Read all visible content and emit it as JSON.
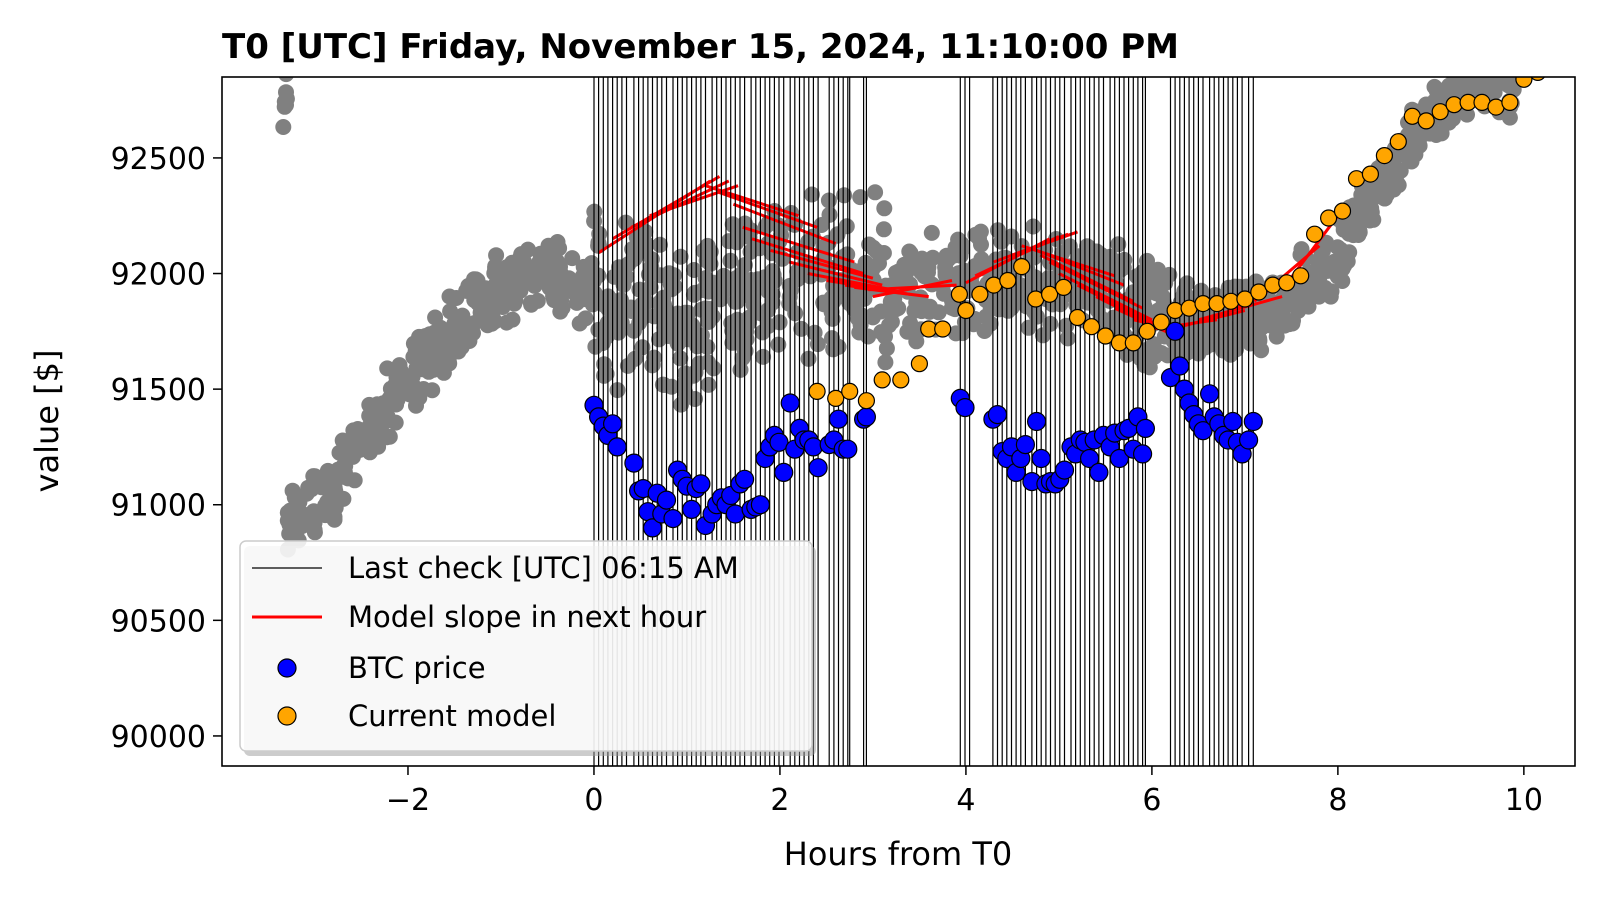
{
  "chart_data": {
    "type": "scatter",
    "title": "T0 [UTC] Friday, November 15, 2024, 11:10:00 PM",
    "xlabel": "Hours from T0",
    "ylabel": "value [$]",
    "xlim": [
      -4,
      10.55
    ],
    "ylim": [
      89870,
      92850
    ],
    "xticks": [
      -2,
      0,
      2,
      4,
      6,
      8,
      10
    ],
    "xtick_labels": [
      "−2",
      "0",
      "2",
      "4",
      "6",
      "8",
      "10"
    ],
    "yticks": [
      90000,
      90500,
      91000,
      91500,
      92000,
      92500
    ],
    "ytick_labels": [
      "90000",
      "90500",
      "91000",
      "91500",
      "92000",
      "92500"
    ],
    "grid": false,
    "legend_position": "lower-left",
    "colors": {
      "history": "#808080",
      "btc": "#0000ff",
      "model": "#ffa500",
      "slope": "#ff0000",
      "check": "#000000"
    },
    "legend": [
      {
        "label": "Last check [UTC] 06:15 AM",
        "kind": "line",
        "color": "#000000"
      },
      {
        "label": "Model slope in next hour",
        "kind": "line",
        "color": "#ff0000"
      },
      {
        "label": "BTC price",
        "kind": "marker",
        "color": "#0000ff"
      },
      {
        "label": "Current model",
        "kind": "marker",
        "color": "#ffa500"
      }
    ],
    "check_lines_x": [
      0.0,
      0.05,
      0.1,
      0.15,
      0.2,
      0.25,
      0.3,
      0.35,
      0.43,
      0.48,
      0.53,
      0.58,
      0.63,
      0.68,
      0.73,
      0.78,
      0.85,
      0.9,
      0.95,
      1.0,
      1.05,
      1.1,
      1.15,
      1.2,
      1.27,
      1.32,
      1.37,
      1.42,
      1.47,
      1.52,
      1.57,
      1.62,
      1.69,
      1.74,
      1.79,
      1.84,
      1.89,
      1.94,
      1.99,
      2.04,
      2.11,
      2.16,
      2.21,
      2.26,
      2.31,
      2.36,
      2.41,
      2.53,
      2.58,
      2.63,
      2.68,
      2.73,
      2.75,
      2.9,
      2.93,
      3.94,
      3.99,
      4.04,
      4.29,
      4.34,
      4.39,
      4.44,
      4.49,
      4.54,
      4.59,
      4.64,
      4.71,
      4.76,
      4.81,
      4.86,
      4.91,
      4.96,
      5.01,
      5.06,
      5.13,
      5.18,
      5.23,
      5.28,
      5.33,
      5.38,
      5.43,
      5.48,
      5.55,
      5.6,
      5.65,
      5.7,
      5.75,
      5.8,
      5.85,
      5.9,
      5.93,
      6.2,
      6.25,
      6.3,
      6.35,
      6.4,
      6.45,
      6.5,
      6.55,
      6.62,
      6.67,
      6.72,
      6.77,
      6.82,
      6.87,
      6.92,
      6.97,
      7.04,
      7.09
    ],
    "btc_price": {
      "x": [
        -0.0,
        0.05,
        0.1,
        0.15,
        0.2,
        0.25,
        0.43,
        0.48,
        0.53,
        0.58,
        0.63,
        0.68,
        0.73,
        0.78,
        0.85,
        0.9,
        0.95,
        1.0,
        1.05,
        1.1,
        1.15,
        1.2,
        1.27,
        1.32,
        1.37,
        1.42,
        1.47,
        1.52,
        1.57,
        1.62,
        1.69,
        1.74,
        1.79,
        1.84,
        1.89,
        1.94,
        1.99,
        2.04,
        2.11,
        2.16,
        2.21,
        2.26,
        2.31,
        2.36,
        2.41,
        2.53,
        2.58,
        2.63,
        2.68,
        2.73,
        2.9,
        2.93,
        3.94,
        3.99,
        4.29,
        4.34,
        4.39,
        4.44,
        4.49,
        4.54,
        4.59,
        4.64,
        4.71,
        4.76,
        4.81,
        4.86,
        4.91,
        4.96,
        5.01,
        5.06,
        5.13,
        5.18,
        5.23,
        5.28,
        5.33,
        5.38,
        5.43,
        5.48,
        5.55,
        5.6,
        5.65,
        5.7,
        5.75,
        5.8,
        5.85,
        5.9,
        5.93,
        6.2,
        6.25,
        6.3,
        6.35,
        6.4,
        6.45,
        6.5,
        6.55,
        6.62,
        6.67,
        6.72,
        6.77,
        6.82,
        6.87,
        6.92,
        6.97,
        7.04,
        7.09
      ],
      "y": [
        91430,
        91380,
        91340,
        91300,
        91350,
        91250,
        91180,
        91060,
        91070,
        90970,
        90900,
        91050,
        90960,
        91020,
        90940,
        91150,
        91110,
        91080,
        90980,
        91070,
        91090,
        90910,
        90960,
        91000,
        91030,
        91000,
        91040,
        90960,
        91090,
        91110,
        90980,
        90990,
        91000,
        91200,
        91250,
        91300,
        91270,
        91140,
        91440,
        91240,
        91330,
        91280,
        91280,
        91250,
        91160,
        91260,
        91280,
        91370,
        91240,
        91240,
        91370,
        91380,
        91460,
        91420,
        91370,
        91390,
        91230,
        91200,
        91250,
        91140,
        91200,
        91260,
        91100,
        91360,
        91200,
        91090,
        91100,
        91090,
        91110,
        91150,
        91250,
        91220,
        91280,
        91270,
        91200,
        91280,
        91140,
        91300,
        91250,
        91310,
        91200,
        91320,
        91330,
        91240,
        91380,
        91220,
        91330,
        91550,
        91750,
        91600,
        91500,
        91440,
        91390,
        91350,
        91320,
        91480,
        91380,
        91350,
        91300,
        91280,
        91360,
        91270,
        91220,
        91280,
        91360
      ]
    },
    "current_model": {
      "x": [
        2.4,
        2.6,
        2.75,
        2.93,
        3.1,
        3.3,
        3.5,
        3.6,
        3.75,
        3.93,
        4.0,
        4.15,
        4.3,
        4.45,
        4.6,
        4.75,
        4.9,
        5.05,
        5.2,
        5.35,
        5.5,
        5.65,
        5.8,
        5.95,
        6.1,
        6.25,
        6.4,
        6.55,
        6.7,
        6.85,
        7.0,
        7.15,
        7.3,
        7.45,
        7.6,
        7.75,
        7.9,
        8.05,
        8.2,
        8.35,
        8.5,
        8.65,
        8.8,
        8.95,
        9.1,
        9.25,
        9.4,
        9.55,
        9.7,
        9.85,
        10.0,
        10.15,
        10.3
      ],
      "y": [
        91490,
        91460,
        91490,
        91450,
        91540,
        91540,
        91610,
        91760,
        91760,
        91910,
        91840,
        91910,
        91950,
        91970,
        92030,
        91890,
        91910,
        91940,
        91810,
        91770,
        91730,
        91700,
        91700,
        91750,
        91790,
        91840,
        91850,
        91870,
        91870,
        91880,
        91890,
        91920,
        91950,
        91960,
        91990,
        92170,
        92240,
        92270,
        92410,
        92430,
        92510,
        92570,
        92680,
        92660,
        92700,
        92730,
        92740,
        92740,
        92720,
        92740,
        92840,
        92870,
        92890
      ]
    }
  }
}
